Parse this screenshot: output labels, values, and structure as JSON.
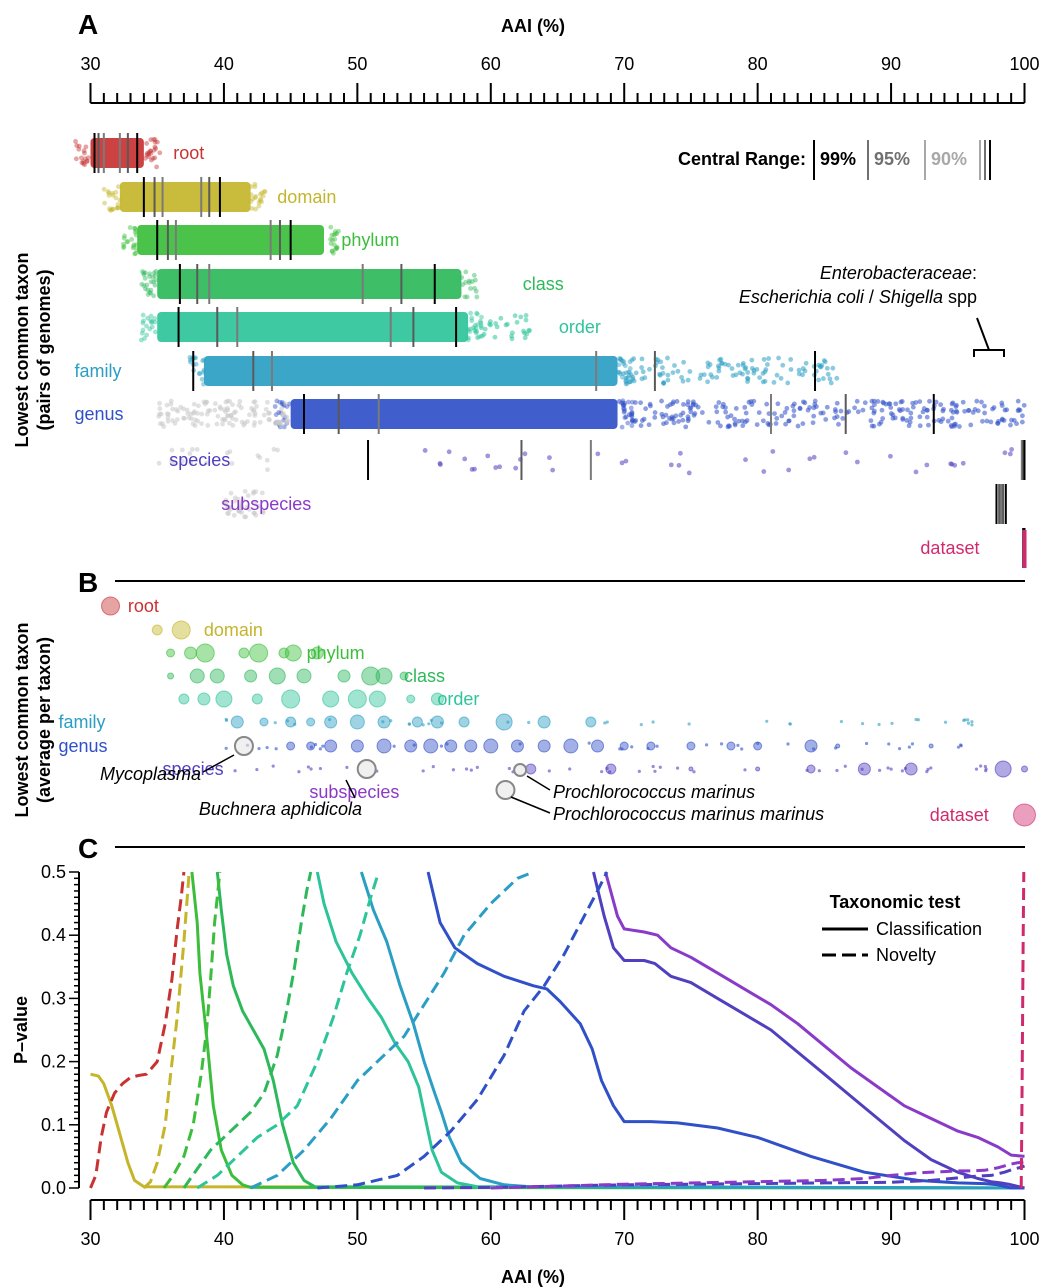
{
  "figure": {
    "panel_a_letter": "A",
    "panel_b_letter": "B",
    "panel_c_letter": "C",
    "colors": {
      "root": "#c83232",
      "domain": "#c4b52a",
      "phylum": "#3cbe3c",
      "class": "#2db95a",
      "order": "#2ec49a",
      "family": "#2b9ec4",
      "genus": "#3050c8",
      "species": "#5040c0",
      "subspecies": "#8a3ac8",
      "dataset": "#d02a6e",
      "gray": "#c8c8c8"
    }
  },
  "chart_data": [
    {
      "panel": "A",
      "type": "scatter",
      "title": "",
      "xlabel": "AAI (%)",
      "ylabel_line1": "Lowest common taxon",
      "ylabel_line2": "(pairs of genomes)",
      "xlim": [
        30,
        100
      ],
      "x_ticks": [
        30,
        40,
        50,
        60,
        70,
        80,
        90,
        100
      ],
      "x_tick_labels": [
        "30",
        "40",
        "50",
        "60",
        "70",
        "80",
        "90",
        "100"
      ],
      "legend": {
        "title": "Central Range:",
        "items": [
          "99%",
          "95%",
          "90%"
        ]
      },
      "annotation": {
        "line1": "Enterobacteraceae",
        "line1_suffix": ":",
        "line2_italic_a": "Escherichia coli",
        "line2_sep": " / ",
        "line2_italic_b": "Shigella",
        "line2_tail": " spp"
      },
      "rows": [
        {
          "taxon": "root",
          "label": "root",
          "dense": [
            30,
            34
          ],
          "range99": [
            30.3,
            33.5
          ],
          "range95": [
            30.6,
            32.8
          ],
          "range90": [
            31,
            32.2
          ],
          "label_x": 36.2
        },
        {
          "taxon": "domain",
          "label": "domain",
          "dense": [
            32.2,
            42
          ],
          "range99": [
            34,
            39.7
          ],
          "range95": [
            34.8,
            38.9
          ],
          "range90": [
            35.4,
            38.3
          ],
          "label_x": 44
        },
        {
          "taxon": "phylum",
          "label": "phylum",
          "dense": [
            33.5,
            47.5
          ],
          "range99": [
            35,
            45
          ],
          "range95": [
            35.8,
            44.2
          ],
          "range90": [
            36.4,
            43.5
          ],
          "label_x": 48.8
        },
        {
          "taxon": "class",
          "label": "class",
          "dense": [
            35,
            57.8
          ],
          "range99": [
            36.7,
            55.8
          ],
          "range95": [
            38,
            53.3
          ],
          "range90": [
            38.9,
            50.4
          ],
          "label_x": 62.4
        },
        {
          "taxon": "order",
          "label": "order",
          "dense": [
            35,
            58.3
          ],
          "range99": [
            36.6,
            57.4
          ],
          "range95": [
            39.5,
            54.2
          ],
          "range90": [
            41,
            52.5
          ],
          "label_x": 65.1
        },
        {
          "taxon": "family",
          "label": "family",
          "dense": [
            38.5,
            69.5
          ],
          "range99": [
            37.7,
            84.3
          ],
          "range95": [
            42.2,
            72.3
          ],
          "range90": [
            43.6,
            67.9
          ],
          "label_x": 28.8
        },
        {
          "taxon": "genus",
          "label": "genus",
          "dense": [
            45,
            69.5
          ],
          "range99": [
            46,
            93.2
          ],
          "range95": [
            48.6,
            86.6
          ],
          "range90": [
            51.6,
            81
          ],
          "label_x": 28.8
        },
        {
          "taxon": "species",
          "label": "species",
          "dense": null,
          "range99": [
            50.8,
            100
          ],
          "range95": [
            62.3,
            99.9
          ],
          "range90": [
            67.5,
            99.8
          ],
          "label_x": 35.9
        },
        {
          "taxon": "subspecies",
          "label": "subspecies",
          "dense": null,
          "range99": [
            97.9,
            98.6
          ],
          "range95": [
            98.1,
            98.4
          ],
          "range90": [
            98.2,
            98.3
          ],
          "label_x": 39.8
        },
        {
          "taxon": "dataset",
          "label": "dataset",
          "dense": null,
          "range99": [
            99.9,
            100
          ],
          "range95": [
            99.95,
            99.98
          ],
          "range90": [
            99.96,
            99.97
          ],
          "label_x": 92.2
        }
      ]
    },
    {
      "panel": "B",
      "type": "scatter",
      "ylabel_line1": "Lowest common taxon",
      "ylabel_line2": "(average per taxon)",
      "xlim": [
        30,
        100
      ],
      "rows": [
        {
          "taxon": "root",
          "label": "root",
          "label_x": 32.8
        },
        {
          "taxon": "domain",
          "label": "domain",
          "label_x": 38.5
        },
        {
          "taxon": "phylum",
          "label": "phylum",
          "label_x": 46.2
        },
        {
          "taxon": "class",
          "label": "class",
          "label_x": 53.5
        },
        {
          "taxon": "order",
          "label": "order",
          "label_x": 56
        },
        {
          "taxon": "family",
          "label": "family",
          "label_x": 27.6
        },
        {
          "taxon": "genus",
          "label": "genus",
          "label_x": 27.6
        },
        {
          "taxon": "species",
          "label": "species",
          "label_x": 35.4
        },
        {
          "taxon": "subspecies",
          "label": "subspecies",
          "label_x": 46.4
        },
        {
          "taxon": "dataset",
          "label": "dataset",
          "label_x": 92.9
        }
      ],
      "callouts": [
        {
          "label": "Mycoplasma",
          "point_x": 41.5,
          "point_row": "genus"
        },
        {
          "label": "Buchnera aphidicola",
          "point_x": 50.7,
          "point_row": "species"
        },
        {
          "label": "Prochlorococcus marinus",
          "point_x": 62.2,
          "point_row": "species"
        },
        {
          "label": "Prochlorococcus marinus marinus",
          "point_x": 61.1,
          "point_row": "subspecies"
        }
      ]
    },
    {
      "panel": "C",
      "type": "line",
      "xlabel": "AAI (%)",
      "ylabel": "P–value",
      "xlim": [
        30,
        100
      ],
      "ylim": [
        0,
        0.5
      ],
      "x_ticks": [
        30,
        40,
        50,
        60,
        70,
        80,
        90,
        100
      ],
      "x_tick_labels": [
        "30",
        "40",
        "50",
        "60",
        "70",
        "80",
        "90",
        "100"
      ],
      "y_ticks": [
        0,
        0.1,
        0.2,
        0.3,
        0.4,
        0.5
      ],
      "y_tick_labels": [
        "0.0",
        "0.1",
        "0.2",
        "0.3",
        "0.4",
        "0.5"
      ],
      "legend": {
        "title": "Taxonomic test",
        "items": [
          "Classification",
          "Novelty"
        ]
      },
      "series": [
        {
          "taxon": "domain",
          "test": "classification",
          "x": [
            30,
            30.6,
            31,
            31.6,
            32.2,
            32.8,
            33.3,
            34,
            100
          ],
          "y": [
            0.18,
            0.177,
            0.165,
            0.13,
            0.085,
            0.04,
            0.012,
            0.002,
            0
          ]
        },
        {
          "taxon": "phylum",
          "test": "classification",
          "x": [
            37.6,
            38,
            38.2,
            38.7,
            39.2,
            39.8,
            40.6,
            41.4,
            42,
            100
          ],
          "y": [
            0.5,
            0.42,
            0.34,
            0.24,
            0.13,
            0.06,
            0.02,
            0.005,
            0.001,
            0
          ]
        },
        {
          "taxon": "class",
          "test": "classification",
          "x": [
            39.5,
            39.8,
            40.2,
            40.7,
            41.4,
            42.2,
            43,
            43.7,
            44.4,
            45.2,
            46,
            46.8,
            100
          ],
          "y": [
            0.5,
            0.44,
            0.37,
            0.32,
            0.28,
            0.25,
            0.22,
            0.17,
            0.1,
            0.04,
            0.012,
            0.002,
            0
          ]
        },
        {
          "taxon": "order",
          "test": "classification",
          "x": [
            47,
            47.5,
            48.4,
            49.6,
            50.8,
            51.8,
            52.8,
            53.8,
            54.6,
            55.2,
            55.6,
            56.3,
            57.5,
            59,
            100
          ],
          "y": [
            0.5,
            0.45,
            0.39,
            0.34,
            0.3,
            0.27,
            0.23,
            0.2,
            0.16,
            0.1,
            0.06,
            0.025,
            0.008,
            0.002,
            0
          ]
        },
        {
          "taxon": "family",
          "test": "classification",
          "x": [
            50.3,
            51.2,
            52.2,
            53.2,
            54.2,
            55,
            55.8,
            56.3,
            56.9,
            57.8,
            59.2,
            61,
            63,
            100
          ],
          "y": [
            0.5,
            0.44,
            0.39,
            0.32,
            0.26,
            0.2,
            0.15,
            0.12,
            0.08,
            0.04,
            0.015,
            0.005,
            0.002,
            0
          ]
        },
        {
          "taxon": "genus",
          "test": "classification",
          "x": [
            55.3,
            56.2,
            57.3,
            59,
            61,
            63.2,
            64.2,
            65.2,
            66.7,
            67.6,
            68.3,
            69.2,
            70,
            72,
            74,
            77,
            80,
            84,
            88,
            92,
            95,
            97,
            98,
            99,
            100
          ],
          "y": [
            0.5,
            0.42,
            0.38,
            0.355,
            0.335,
            0.32,
            0.315,
            0.295,
            0.26,
            0.22,
            0.17,
            0.13,
            0.105,
            0.105,
            0.103,
            0.095,
            0.08,
            0.05,
            0.025,
            0.012,
            0.008,
            0.007,
            0.005,
            0,
            0
          ]
        },
        {
          "taxon": "species",
          "test": "classification",
          "x": [
            67.7,
            68.5,
            69.2,
            70,
            71.5,
            72.3,
            73.5,
            75,
            77,
            79,
            81,
            83,
            85,
            87,
            89,
            91,
            93,
            95,
            96.5,
            97.5,
            98.2,
            98.8,
            99.2,
            99.6,
            100
          ],
          "y": [
            0.5,
            0.43,
            0.38,
            0.36,
            0.36,
            0.355,
            0.335,
            0.325,
            0.3,
            0.275,
            0.25,
            0.215,
            0.18,
            0.145,
            0.11,
            0.075,
            0.045,
            0.025,
            0.015,
            0.01,
            0.008,
            0.006,
            0.004,
            0.002,
            0
          ]
        },
        {
          "taxon": "subspecies",
          "test": "classification",
          "x": [
            68.6,
            69.5,
            70,
            71.5,
            72.5,
            73.5,
            75,
            77,
            79,
            81,
            83,
            85,
            87,
            89,
            91,
            93,
            95,
            96.5,
            98,
            99,
            100
          ],
          "y": [
            0.5,
            0.43,
            0.41,
            0.405,
            0.4,
            0.38,
            0.365,
            0.34,
            0.315,
            0.29,
            0.26,
            0.225,
            0.19,
            0.16,
            0.13,
            0.11,
            0.09,
            0.08,
            0.065,
            0.052,
            0.05
          ]
        },
        {
          "taxon": "root",
          "test": "novelty",
          "x": [
            30,
            30.4,
            30.8,
            31.2,
            31.8,
            32.4,
            33,
            33.6,
            34.2,
            35,
            35.6,
            36.1,
            36.5,
            36.8,
            37
          ],
          "y": [
            0,
            0.02,
            0.08,
            0.12,
            0.15,
            0.165,
            0.175,
            0.178,
            0.18,
            0.2,
            0.26,
            0.33,
            0.41,
            0.46,
            0.5
          ]
        },
        {
          "taxon": "domain",
          "test": "novelty",
          "x": [
            34,
            34.5,
            35,
            35.6,
            36,
            36.5,
            37,
            37.4
          ],
          "y": [
            0,
            0.01,
            0.04,
            0.1,
            0.18,
            0.27,
            0.39,
            0.5
          ]
        },
        {
          "taxon": "phylum",
          "test": "novelty",
          "x": [
            35.5,
            36.2,
            37,
            37.7,
            38.3,
            38.7,
            39,
            39.3,
            39.7
          ],
          "y": [
            0,
            0.02,
            0.05,
            0.1,
            0.18,
            0.25,
            0.33,
            0.42,
            0.5
          ]
        },
        {
          "taxon": "class",
          "test": "novelty",
          "x": [
            37,
            38,
            39,
            40,
            41,
            42,
            43,
            44,
            44.7,
            45.3,
            45.8,
            46.2,
            46.5
          ],
          "y": [
            0,
            0.03,
            0.06,
            0.08,
            0.1,
            0.12,
            0.15,
            0.21,
            0.28,
            0.35,
            0.42,
            0.47,
            0.5
          ]
        },
        {
          "taxon": "order",
          "test": "novelty",
          "x": [
            38,
            39.5,
            41,
            42.5,
            44,
            45.5,
            47,
            48.2,
            49.2,
            50.2,
            51,
            51.6
          ],
          "y": [
            0,
            0.02,
            0.05,
            0.08,
            0.1,
            0.13,
            0.2,
            0.27,
            0.34,
            0.4,
            0.46,
            0.5
          ]
        },
        {
          "taxon": "family",
          "test": "novelty",
          "x": [
            42,
            44,
            46,
            48,
            50,
            52,
            53.5,
            55,
            56.5,
            58,
            60,
            62,
            63.2
          ],
          "y": [
            0,
            0.02,
            0.06,
            0.11,
            0.17,
            0.21,
            0.24,
            0.29,
            0.34,
            0.4,
            0.45,
            0.49,
            0.5
          ]
        },
        {
          "taxon": "genus",
          "test": "novelty",
          "x": [
            47,
            50,
            53,
            55,
            57,
            59,
            61,
            62.5,
            64,
            65.5,
            67,
            68,
            68.7
          ],
          "y": [
            0,
            0.005,
            0.02,
            0.05,
            0.09,
            0.14,
            0.21,
            0.28,
            0.32,
            0.37,
            0.43,
            0.47,
            0.5
          ]
        },
        {
          "taxon": "species",
          "test": "novelty",
          "x": [
            55,
            60,
            65,
            70,
            75,
            80,
            85,
            90,
            93,
            95,
            96.5,
            97.5,
            98.5,
            99.2,
            99.8,
            100
          ],
          "y": [
            0,
            0.001,
            0.003,
            0.005,
            0.006,
            0.007,
            0.008,
            0.009,
            0.012,
            0.016,
            0.019,
            0.02,
            0.025,
            0.03,
            0.033,
            0.035
          ]
        },
        {
          "taxon": "subspecies",
          "test": "novelty",
          "x": [
            60,
            70,
            80,
            85,
            88,
            90,
            92,
            94,
            95,
            96,
            97,
            98,
            99,
            99.5,
            100
          ],
          "y": [
            0,
            0.006,
            0.01,
            0.012,
            0.015,
            0.02,
            0.024,
            0.026,
            0.027,
            0.027,
            0.028,
            0.032,
            0.038,
            0.04,
            0.041
          ]
        },
        {
          "taxon": "dataset",
          "test": "novelty",
          "x": [
            99.75,
            99.8,
            99.85,
            99.9,
            99.95
          ],
          "y": [
            0,
            0.1,
            0.25,
            0.4,
            0.5
          ]
        }
      ]
    }
  ]
}
